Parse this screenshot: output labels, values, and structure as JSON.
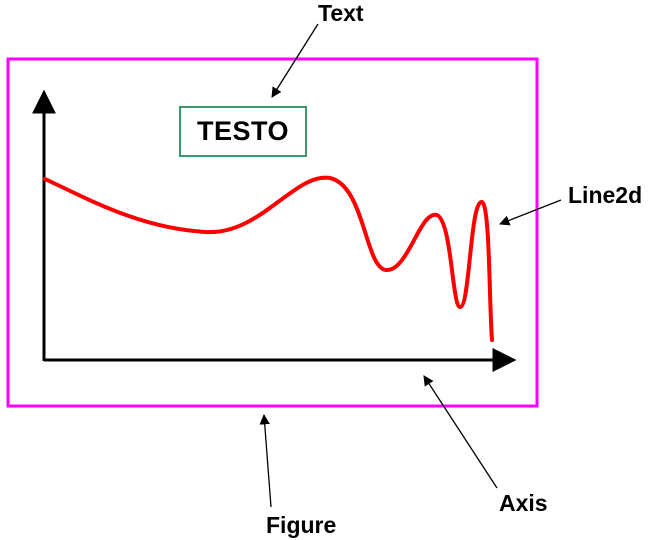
{
  "annotations": {
    "text": "Text",
    "line2d": "Line2d",
    "axis": "Axis",
    "figure": "Figure"
  },
  "text_box": {
    "content": "TESTO"
  },
  "colors": {
    "figure_border": "#ff00ff",
    "text_box_border": "#3a9a6a",
    "curve": "#ff0000",
    "axes": "#000000"
  }
}
